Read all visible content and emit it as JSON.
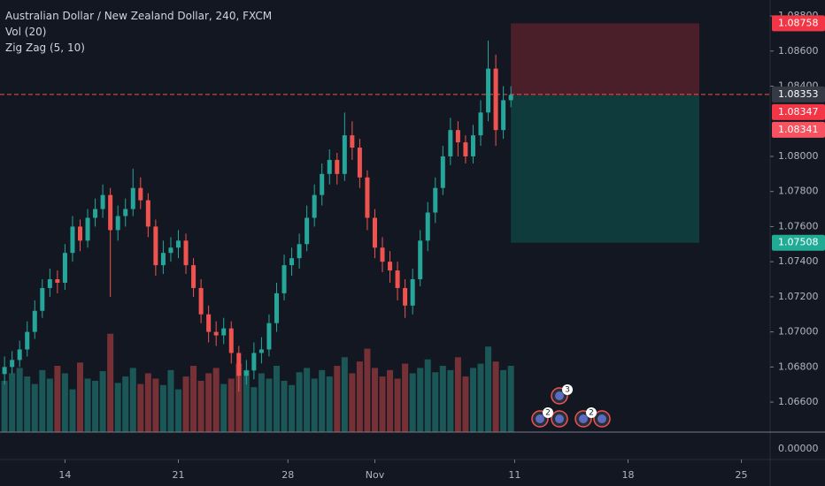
{
  "chart_data": {
    "type": "candlestick",
    "title": "Australian Dollar / New Zealand Dollar, 240, FXCM",
    "indicators": [
      "Vol (20)",
      "Zig Zag (5, 10)"
    ],
    "up_color": "#26a69a",
    "down_color": "#ef5350",
    "grid": false,
    "x": [
      0,
      2,
      4,
      6,
      8,
      10,
      12,
      14,
      16,
      18,
      20,
      22,
      24,
      26,
      28,
      30,
      32,
      34,
      36,
      38,
      40,
      42,
      44,
      46,
      48,
      50,
      52,
      54,
      56,
      58,
      60,
      62,
      64,
      66,
      68,
      70,
      72,
      74,
      76,
      78,
      80,
      82,
      84,
      86,
      88,
      90,
      92,
      94,
      96,
      98,
      100,
      102,
      104,
      106,
      108,
      110,
      112,
      114,
      116,
      118,
      120,
      122,
      124,
      126,
      128,
      130,
      132,
      134
    ],
    "open": [
      1.0676,
      1.068,
      1.0684,
      1.069,
      1.07,
      1.0712,
      1.0725,
      1.073,
      1.0728,
      1.0745,
      1.076,
      1.0752,
      1.0765,
      1.077,
      1.0778,
      1.0758,
      1.0766,
      1.077,
      1.0782,
      1.0775,
      1.076,
      1.0738,
      1.0745,
      1.0748,
      1.0752,
      1.0738,
      1.0725,
      1.071,
      1.07,
      1.0698,
      1.0702,
      1.0688,
      1.0675,
      1.0678,
      1.0688,
      1.069,
      1.0705,
      1.0722,
      1.0738,
      1.0742,
      1.075,
      1.0765,
      1.0778,
      1.079,
      1.0798,
      1.079,
      1.0812,
      1.0805,
      1.0788,
      1.0765,
      1.0748,
      1.074,
      1.0735,
      1.0725,
      1.0715,
      1.073,
      1.0752,
      1.0768,
      1.0782,
      1.08,
      1.0815,
      1.0808,
      1.08,
      1.0812,
      1.0825,
      1.085,
      1.0815,
      1.0832
    ],
    "high": [
      1.0686,
      1.0689,
      1.0695,
      1.0706,
      1.0718,
      1.073,
      1.0736,
      1.0735,
      1.075,
      1.0766,
      1.0764,
      1.077,
      1.0776,
      1.0784,
      1.0782,
      1.0772,
      1.0776,
      1.0793,
      1.0788,
      1.0779,
      1.0764,
      1.0752,
      1.0754,
      1.0758,
      1.0756,
      1.0742,
      1.073,
      1.0715,
      1.0706,
      1.0708,
      1.0706,
      1.0692,
      1.0684,
      1.0694,
      1.0697,
      1.071,
      1.0728,
      1.0744,
      1.0748,
      1.0756,
      1.0772,
      1.0784,
      1.0796,
      1.0804,
      1.0802,
      1.0825,
      1.082,
      1.081,
      1.0792,
      1.077,
      1.0754,
      1.0746,
      1.074,
      1.073,
      1.0736,
      1.0758,
      1.0774,
      1.0788,
      1.0806,
      1.0822,
      1.082,
      1.0812,
      1.0818,
      1.0832,
      1.0866,
      1.0858,
      1.084,
      1.084
    ],
    "low": [
      1.067,
      1.0676,
      1.068,
      1.0686,
      1.0696,
      1.0708,
      1.072,
      1.0722,
      1.0724,
      1.074,
      1.0746,
      1.0748,
      1.076,
      1.0765,
      1.072,
      1.0752,
      1.076,
      1.0766,
      1.077,
      1.0754,
      1.0732,
      1.0733,
      1.074,
      1.0742,
      1.0733,
      1.072,
      1.0705,
      1.0694,
      1.0692,
      1.0693,
      1.0682,
      1.0666,
      1.067,
      1.0673,
      1.0682,
      1.0686,
      1.07,
      1.0718,
      1.0732,
      1.0736,
      1.0746,
      1.076,
      1.0772,
      1.0784,
      1.0784,
      1.0786,
      1.0798,
      1.0782,
      1.0758,
      1.0742,
      1.0734,
      1.0728,
      1.0718,
      1.0708,
      1.071,
      1.0726,
      1.0746,
      1.0762,
      1.0778,
      1.0795,
      1.08,
      1.0796,
      1.0796,
      1.0806,
      1.082,
      1.0806,
      1.081,
      1.0828
    ],
    "close": [
      1.068,
      1.0684,
      1.069,
      1.07,
      1.0712,
      1.0725,
      1.073,
      1.0728,
      1.0745,
      1.076,
      1.0752,
      1.0765,
      1.077,
      1.0778,
      1.0758,
      1.0766,
      1.077,
      1.0782,
      1.0775,
      1.076,
      1.0738,
      1.0745,
      1.0748,
      1.0752,
      1.0738,
      1.0725,
      1.071,
      1.07,
      1.0698,
      1.0702,
      1.0688,
      1.0675,
      1.0678,
      1.0688,
      1.069,
      1.0705,
      1.0722,
      1.0738,
      1.0742,
      1.075,
      1.0765,
      1.0778,
      1.079,
      1.0798,
      1.079,
      1.0812,
      1.0805,
      1.0788,
      1.0765,
      1.0748,
      1.074,
      1.0735,
      1.0725,
      1.0715,
      1.073,
      1.0752,
      1.0768,
      1.0782,
      1.08,
      1.0815,
      1.0808,
      1.08,
      1.0812,
      1.0825,
      1.085,
      1.0815,
      1.0832,
      1.0835
    ],
    "volume": [
      48,
      55,
      60,
      52,
      45,
      58,
      50,
      62,
      55,
      40,
      65,
      50,
      48,
      57,
      92,
      46,
      52,
      60,
      45,
      55,
      50,
      44,
      58,
      40,
      52,
      62,
      48,
      55,
      60,
      45,
      50,
      64,
      58,
      42,
      55,
      50,
      62,
      48,
      44,
      56,
      60,
      50,
      58,
      52,
      62,
      70,
      55,
      66,
      78,
      60,
      52,
      58,
      50,
      64,
      55,
      60,
      68,
      56,
      62,
      58,
      70,
      52,
      60,
      64,
      80,
      66,
      58,
      62
    ],
    "vlim": [
      0,
      100
    ],
    "xlim": [
      -1.2,
      202.6
    ],
    "xticks": [
      {
        "value": 16,
        "label": "14"
      },
      {
        "value": 46,
        "label": "21"
      },
      {
        "value": 75,
        "label": "28"
      },
      {
        "value": 98,
        "label": "Nov"
      },
      {
        "value": 135,
        "label": "11"
      },
      {
        "value": 165,
        "label": "18"
      },
      {
        "value": 195,
        "label": "25"
      }
    ],
    "ylim": [
      1.06273,
      1.08891
    ],
    "yticks": [
      {
        "value": 1.088,
        "label": "1.08800"
      },
      {
        "value": 1.086,
        "label": "1.08600"
      },
      {
        "value": 1.084,
        "label": "1.08400"
      },
      {
        "value": 1.08,
        "label": "1.08000"
      },
      {
        "value": 1.078,
        "label": "1.07800"
      },
      {
        "value": 1.076,
        "label": "1.07600"
      },
      {
        "value": 1.074,
        "label": "1.07400"
      },
      {
        "value": 1.072,
        "label": "1.07200"
      },
      {
        "value": 1.07,
        "label": "1.07000"
      },
      {
        "value": 1.068,
        "label": "1.06800"
      },
      {
        "value": 1.066,
        "label": "1.06600"
      }
    ],
    "vticks": [
      {
        "value": 0,
        "label": "0.00000"
      }
    ],
    "last_price": 1.08353,
    "last_price_color": "#ef5350",
    "position": {
      "stop": 1.08758,
      "entry": 1.08347,
      "target": 1.07508
    },
    "price_labels": [
      {
        "value": 1.08758,
        "color": "#f23645"
      },
      {
        "value": 1.08353,
        "color": "#363a45"
      },
      {
        "value": 1.08347,
        "color": "#f23645"
      },
      {
        "value": 1.08341,
        "color": "#f7525f"
      },
      {
        "value": 1.07508,
        "color": "#22ab94"
      }
    ],
    "event_counts": [
      3,
      2,
      2
    ]
  }
}
